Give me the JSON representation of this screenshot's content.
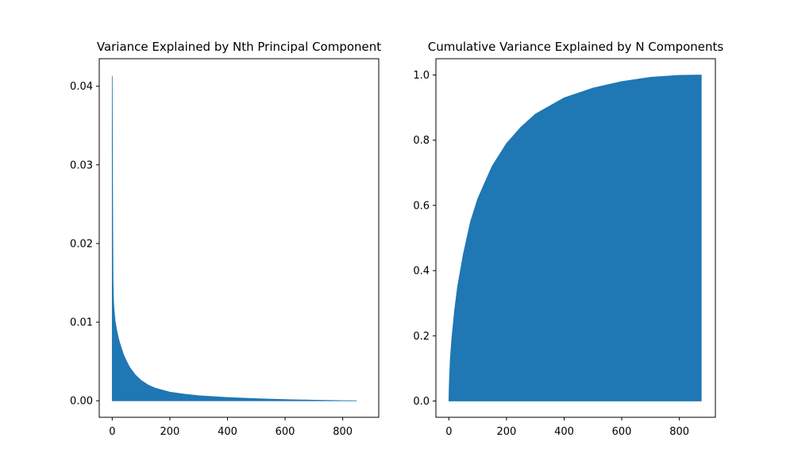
{
  "chart_data": [
    {
      "type": "area",
      "title": "Variance Explained by Nth Principal Component",
      "xlabel": "",
      "ylabel": "",
      "xlim": [
        -45,
        925
      ],
      "ylim": [
        -0.0021,
        0.0435
      ],
      "x_ticks": [
        0,
        200,
        400,
        600,
        800
      ],
      "x_tick_labels": [
        "0",
        "200",
        "400",
        "600",
        "800"
      ],
      "y_ticks": [
        0.0,
        0.01,
        0.02,
        0.03,
        0.04
      ],
      "y_tick_labels": [
        "0.00",
        "0.01",
        "0.02",
        "0.03",
        "0.04"
      ],
      "grid": false,
      "color": "#1f77b4",
      "series": [
        {
          "x": [
            0,
            1,
            2,
            3,
            4,
            5,
            7,
            10,
            15,
            20,
            25,
            30,
            40,
            50,
            60,
            80,
            100,
            125,
            150,
            200,
            250,
            300,
            400,
            500,
            600,
            700,
            800,
            849
          ],
          "values": [
            0.0413,
            0.031,
            0.021,
            0.0152,
            0.0135,
            0.0124,
            0.0114,
            0.0102,
            0.0091,
            0.0082,
            0.0075,
            0.0069,
            0.0058,
            0.005,
            0.0043,
            0.0033,
            0.0026,
            0.002,
            0.0016,
            0.0011,
            0.00085,
            0.00065,
            0.00042,
            0.00027,
            0.00016,
            8e-05,
            2e-05,
            0.0
          ]
        }
      ]
    },
    {
      "type": "area",
      "title": "Cumulative Variance Explained by N Components",
      "xlabel": "",
      "ylabel": "",
      "xlim": [
        -45,
        925
      ],
      "ylim": [
        -0.05,
        1.05
      ],
      "x_ticks": [
        0,
        200,
        400,
        600,
        800
      ],
      "x_tick_labels": [
        "0",
        "200",
        "400",
        "600",
        "800"
      ],
      "y_ticks": [
        0.0,
        0.2,
        0.4,
        0.6,
        0.8,
        1.0
      ],
      "y_tick_labels": [
        "0.0",
        "0.2",
        "0.4",
        "0.6",
        "0.8",
        "1.0"
      ],
      "grid": false,
      "color": "#1f77b4",
      "series": [
        {
          "x": [
            0,
            1,
            2,
            5,
            10,
            20,
            30,
            50,
            75,
            100,
            150,
            200,
            250,
            300,
            400,
            500,
            600,
            700,
            800,
            876
          ],
          "values": [
            0.0,
            0.04,
            0.07,
            0.13,
            0.19,
            0.28,
            0.35,
            0.45,
            0.55,
            0.62,
            0.72,
            0.79,
            0.84,
            0.88,
            0.93,
            0.96,
            0.98,
            0.993,
            0.999,
            1.0
          ]
        }
      ]
    }
  ]
}
